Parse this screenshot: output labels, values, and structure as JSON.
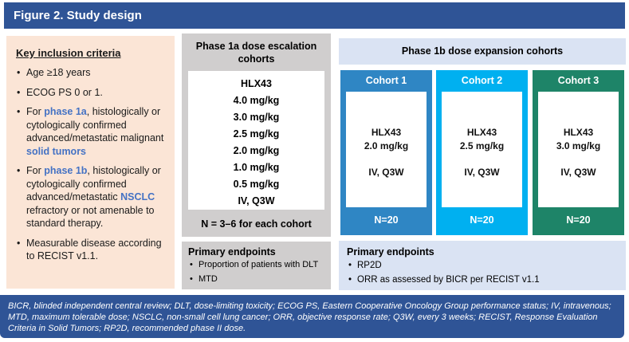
{
  "title": "Figure 2. Study design",
  "colors": {
    "header_bar": "#2F5496",
    "inclusion_panel": "#FBE5D6",
    "phase1a_panel": "#D0CECE",
    "phase1b_panel": "#DAE3F3",
    "accent_text": "#4472C4",
    "cohort1": "#2F86C4",
    "cohort2": "#00B0F0",
    "cohort3": "#1E8468"
  },
  "inclusion": {
    "title": "Key inclusion criteria",
    "bullets": [
      [
        {
          "t": "Age ≥18 years"
        }
      ],
      [
        {
          "t": "ECOG PS 0 or 1."
        }
      ],
      [
        {
          "t": "For "
        },
        {
          "t": "phase 1a",
          "em": true
        },
        {
          "t": ", histologically or cytologically confirmed advanced/metastatic malignant "
        },
        {
          "t": "solid tumors",
          "em": true
        }
      ],
      [
        {
          "t": "For "
        },
        {
          "t": "phase 1b",
          "em": true
        },
        {
          "t": ", histologically or cytologically confirmed advanced/metastatic "
        },
        {
          "t": "NSCLC",
          "em": true
        },
        {
          "t": " refractory or not amenable to standard therapy."
        }
      ],
      [
        {
          "t": "Measurable disease according to RECIST v1.1."
        }
      ]
    ]
  },
  "phase1a": {
    "title": "Phase 1a dose escalation cohorts",
    "drug": "HLX43",
    "doses": [
      "4.0 mg/kg",
      "3.0 mg/kg",
      "2.5 mg/kg",
      "2.0 mg/kg",
      "1.0 mg/kg",
      "0.5 mg/kg"
    ],
    "schedule": "IV, Q3W",
    "n_note": "N = 3–6 for each cohort",
    "endpoints": {
      "title": "Primary endpoints",
      "bullets": [
        "Proportion of patients with DLT",
        "MTD"
      ]
    }
  },
  "phase1b": {
    "title": "Phase 1b dose expansion cohorts",
    "cohorts": [
      {
        "label": "Cohort 1",
        "drug": "HLX43",
        "dose": "2.0 mg/kg",
        "schedule": "IV, Q3W",
        "n": "N=20",
        "color": "#2F86C4"
      },
      {
        "label": "Cohort 2",
        "drug": "HLX43",
        "dose": "2.5 mg/kg",
        "schedule": "IV, Q3W",
        "n": "N=20",
        "color": "#00B0F0"
      },
      {
        "label": "Cohort 3",
        "drug": "HLX43",
        "dose": "3.0 mg/kg",
        "schedule": "IV, Q3W",
        "n": "N=20",
        "color": "#1E8468"
      }
    ],
    "endpoints": {
      "title": "Primary endpoints",
      "bullets": [
        "RP2D",
        "ORR as assessed by BICR per RECIST v1.1"
      ]
    }
  },
  "footnote": "BICR, blinded independent central review; DLT, dose-limiting toxicity; ECOG PS, Eastern Cooperative Oncology Group performance status; IV, intravenous; MTD, maximum tolerable dose; NSCLC, non-small cell lung cancer; ORR, objective response rate; Q3W, every 3 weeks; RECIST, Response Evaluation Criteria in Solid Tumors; RP2D, recommended phase II dose."
}
